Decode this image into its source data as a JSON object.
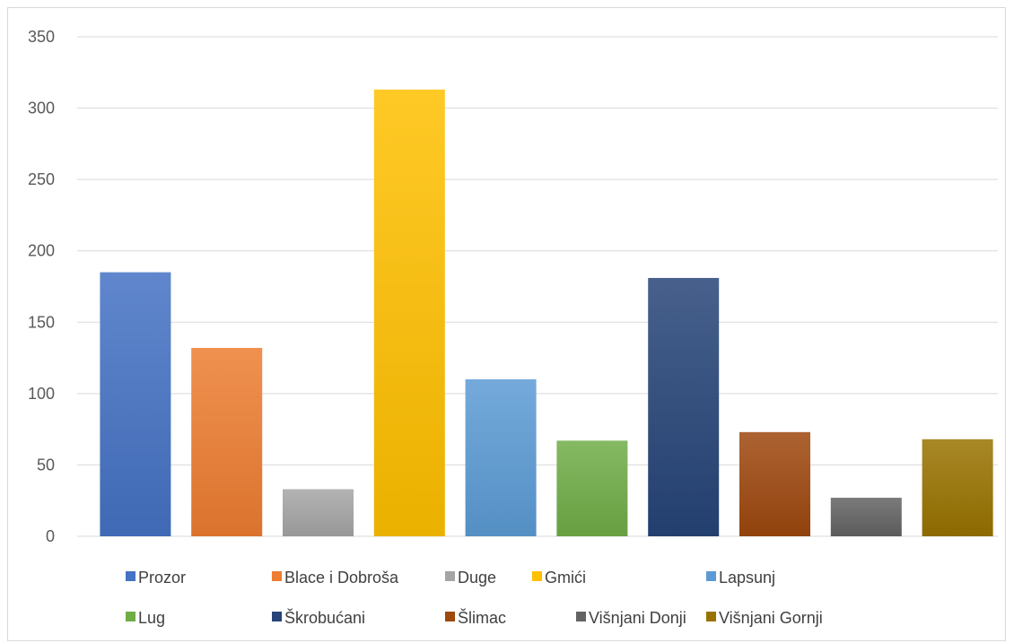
{
  "chart_data": {
    "type": "bar",
    "title": "",
    "xlabel": "",
    "ylabel": "",
    "categories": [
      "Prozor",
      "Blace i Dobroša",
      "Duge",
      "Gmići",
      "Lapsunj",
      "Lug",
      "Škrobućani",
      "Šlimac",
      "Višnjani Donji",
      "Višnjani Gornji"
    ],
    "values": [
      185,
      132,
      33,
      313,
      110,
      67,
      181,
      73,
      27,
      68
    ],
    "colors": [
      "#4472c4",
      "#ed7d31",
      "#a5a5a5",
      "#ffc000",
      "#5b9bd5",
      "#70ad47",
      "#264478",
      "#9e480e",
      "#636363",
      "#997300"
    ],
    "ylim": [
      0,
      350
    ],
    "yticks": [
      0,
      50,
      100,
      150,
      200,
      250,
      300,
      350
    ],
    "grid": true,
    "legend_position": "bottom"
  }
}
